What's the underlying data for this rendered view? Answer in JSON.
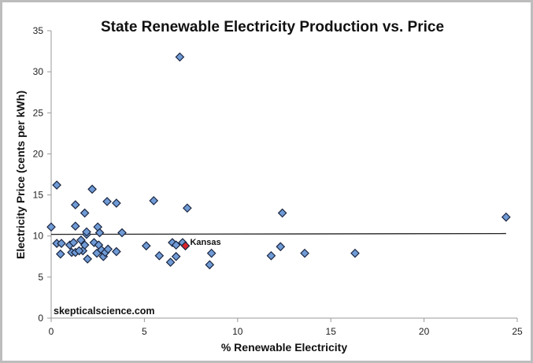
{
  "chart_data": {
    "type": "scatter",
    "title": "State Renewable Electricity Production vs. Price",
    "xlabel": "% Renewable Electricity",
    "ylabel": "Electricity Price (cents per kWh)",
    "xlim": [
      0,
      25
    ],
    "ylim": [
      0,
      35
    ],
    "x_ticks": [
      0,
      5,
      10,
      15,
      20,
      25
    ],
    "y_ticks": [
      0,
      5,
      10,
      15,
      20,
      25,
      30,
      35
    ],
    "grid": false,
    "legend": "none",
    "watermark": "skepticalscience.com",
    "colors": {
      "marker_fill": "#6f9bd6",
      "marker_edge": "#1a2540",
      "highlight_fill": "#d8232a",
      "trendline": "#222222",
      "axis": "#999999"
    },
    "trendline": {
      "x": [
        0,
        24.4
      ],
      "y": [
        10.2,
        10.3
      ]
    },
    "highlight": {
      "label": "Kansas",
      "x": 7.2,
      "y": 8.8
    },
    "series": [
      {
        "name": "States",
        "points": [
          [
            0,
            11.1
          ],
          [
            0.3,
            16.2
          ],
          [
            0.3,
            9.1
          ],
          [
            0.55,
            9.1
          ],
          [
            0.5,
            7.8
          ],
          [
            1.0,
            8.9
          ],
          [
            1.2,
            9.2
          ],
          [
            1.1,
            8.0
          ],
          [
            1.3,
            8.0
          ],
          [
            1.3,
            13.8
          ],
          [
            1.3,
            11.2
          ],
          [
            1.6,
            9.5
          ],
          [
            1.7,
            8.2
          ],
          [
            1.5,
            8.2
          ],
          [
            1.8,
            12.8
          ],
          [
            1.9,
            10.2
          ],
          [
            1.9,
            10.5
          ],
          [
            1.95,
            7.2
          ],
          [
            1.8,
            8.9
          ],
          [
            2.2,
            15.7
          ],
          [
            2.3,
            9.2
          ],
          [
            2.5,
            11.1
          ],
          [
            2.45,
            7.9
          ],
          [
            2.55,
            8.9
          ],
          [
            2.6,
            10.4
          ],
          [
            2.7,
            8.3
          ],
          [
            2.8,
            7.5
          ],
          [
            2.9,
            8.0
          ],
          [
            3.05,
            8.4
          ],
          [
            3.0,
            14.2
          ],
          [
            3.5,
            8.1
          ],
          [
            3.5,
            14.0
          ],
          [
            3.8,
            10.4
          ],
          [
            5.1,
            8.8
          ],
          [
            5.5,
            14.3
          ],
          [
            5.8,
            7.6
          ],
          [
            6.4,
            6.8
          ],
          [
            6.5,
            9.2
          ],
          [
            6.7,
            7.5
          ],
          [
            6.7,
            8.9
          ],
          [
            6.9,
            31.8
          ],
          [
            7.05,
            9.2
          ],
          [
            7.3,
            13.4
          ],
          [
            8.6,
            7.9
          ],
          [
            8.5,
            6.5
          ],
          [
            12.4,
            12.8
          ],
          [
            12.3,
            8.7
          ],
          [
            11.8,
            7.6
          ],
          [
            13.6,
            7.9
          ],
          [
            16.3,
            7.9
          ],
          [
            24.4,
            12.3
          ]
        ]
      }
    ]
  }
}
